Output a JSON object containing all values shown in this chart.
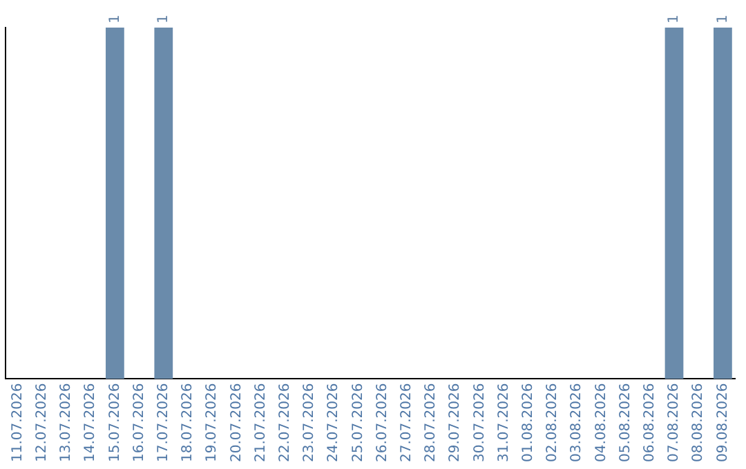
{
  "chart_data": {
    "type": "bar",
    "categories": [
      "11.07.2026",
      "12.07.2026",
      "13.07.2026",
      "14.07.2026",
      "15.07.2026",
      "16.07.2026",
      "17.07.2026",
      "18.07.2026",
      "19.07.2026",
      "20.07.2026",
      "21.07.2026",
      "22.07.2026",
      "23.07.2026",
      "24.07.2026",
      "25.07.2026",
      "26.07.2026",
      "27.07.2026",
      "28.07.2026",
      "29.07.2026",
      "30.07.2026",
      "31.07.2026",
      "01.08.2026",
      "02.08.2026",
      "03.08.2026",
      "04.08.2026",
      "05.08.2026",
      "06.08.2026",
      "07.08.2026",
      "08.08.2026",
      "09.08.2026"
    ],
    "values": [
      0,
      0,
      0,
      0,
      1,
      0,
      1,
      0,
      0,
      0,
      0,
      0,
      0,
      0,
      0,
      0,
      0,
      0,
      0,
      0,
      0,
      0,
      0,
      0,
      0,
      0,
      0,
      1,
      0,
      1
    ],
    "value_labels": [
      null,
      null,
      null,
      null,
      "1",
      null,
      "1",
      null,
      null,
      null,
      null,
      null,
      null,
      null,
      null,
      null,
      null,
      null,
      null,
      null,
      null,
      null,
      null,
      null,
      null,
      null,
      null,
      "1",
      null,
      "1"
    ],
    "color": "#6a8bab",
    "grid": false,
    "legend": false,
    "tick_labels": "x"
  }
}
